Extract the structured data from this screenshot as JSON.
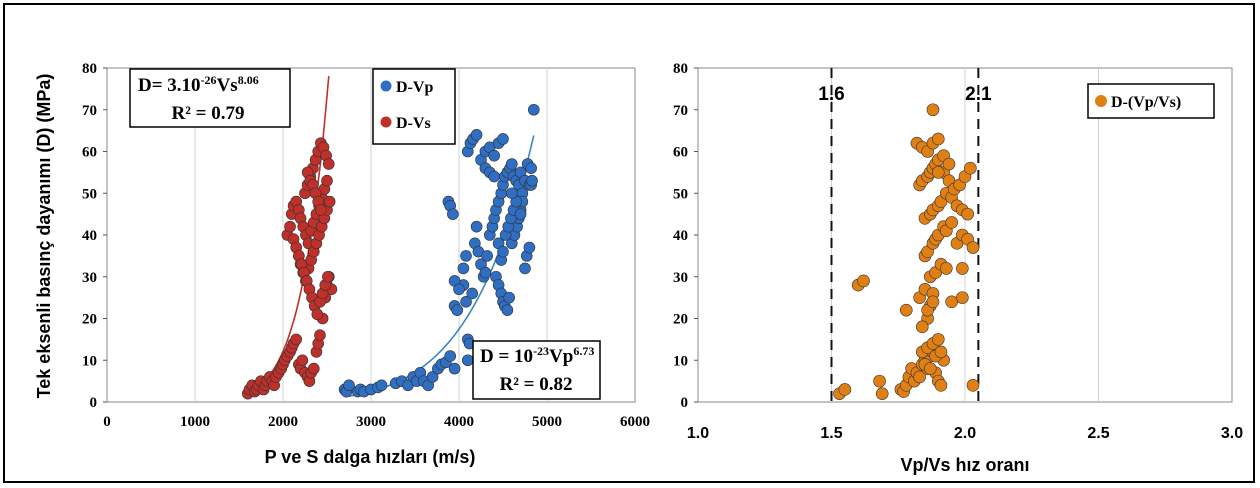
{
  "chart_data": [
    {
      "type": "scatter",
      "ylabel": "Tek eksenli basınç dayanımı (D) (MPa)",
      "xlabel": "P ve S dalga hızları (m/s)",
      "xlim": [
        0,
        6000
      ],
      "ylim": [
        0,
        80
      ],
      "xticks": [
        "0",
        "1000",
        "2000",
        "3000",
        "4000",
        "5000",
        "6000"
      ],
      "yticks": [
        "0",
        "10",
        "20",
        "30",
        "40",
        "50",
        "60",
        "70",
        "80"
      ],
      "grid": "vertical",
      "legend": "top-center",
      "series": [
        {
          "name": "D-Vp",
          "color": "#2e6fc4",
          "x": [
            2700,
            2720,
            2750,
            2850,
            2880,
            2920,
            3000,
            3080,
            3120,
            3280,
            3350,
            3420,
            3480,
            3520,
            3560,
            3600,
            3650,
            3700,
            3760,
            3800,
            3850,
            3900,
            3950,
            3880,
            3900,
            3930,
            3950,
            3980,
            4050,
            4080,
            4100,
            4120,
            4150,
            4180,
            4200,
            4220,
            4250,
            4280,
            4300,
            4320,
            4350,
            4380,
            4400,
            4420,
            4450,
            4480,
            4500,
            4520,
            4550,
            4580,
            4600,
            4620,
            4650,
            4680,
            4700,
            4720,
            4750,
            4780,
            4800,
            4820,
            4850,
            4100,
            4130,
            4160,
            4200,
            4250,
            4300,
            4350,
            4400,
            4420,
            4450,
            4480,
            4500,
            4520,
            4550,
            4570,
            4600,
            4630,
            4660,
            4680,
            4700,
            4720,
            4750,
            4770,
            4800,
            4820,
            4830,
            4450,
            4480,
            4500,
            4530,
            4560,
            4590,
            4620,
            4650,
            3950,
            4000,
            4050,
            4080,
            4300,
            4350,
            4400,
            4450,
            4500,
            4600,
            4700,
            4100
          ],
          "y": [
            3,
            2.5,
            4,
            2.5,
            3,
            2.5,
            3,
            3.5,
            4,
            4.5,
            5,
            4,
            6,
            5,
            7,
            5,
            4,
            6,
            8,
            9,
            9.5,
            11,
            8,
            48,
            47,
            45,
            23,
            22,
            28,
            24,
            15,
            14,
            26,
            38,
            42,
            36,
            33,
            30,
            31,
            35,
            40,
            42,
            44,
            46,
            48,
            50,
            52,
            54,
            55,
            56,
            57,
            54,
            53,
            52,
            55,
            50,
            53,
            57,
            52,
            56,
            70,
            60,
            62,
            63,
            64,
            58,
            56,
            55,
            54,
            30,
            28,
            26,
            24,
            23,
            22,
            25,
            38,
            40,
            42,
            44,
            46,
            48,
            32,
            35,
            37,
            52,
            53,
            38,
            34,
            36,
            40,
            42,
            44,
            46,
            48,
            29,
            27,
            32,
            35,
            60,
            61,
            59,
            62,
            63,
            50,
            45,
            10
          ],
          "fit": {
            "label_line1": "D = 10",
            "label_exp1": "-23",
            "label_mid": "Vp",
            "label_exp2": "6.73",
            "r2": "R² = 0.82"
          }
        },
        {
          "name": "D-Vs",
          "color": "#c0302a",
          "x": [
            1600,
            1620,
            1650,
            1680,
            1700,
            1720,
            1750,
            1780,
            1800,
            1820,
            1850,
            1880,
            1900,
            1920,
            1950,
            1980,
            2000,
            2020,
            2050,
            2080,
            2100,
            2120,
            2150,
            2180,
            2200,
            2220,
            2250,
            2280,
            2300,
            2320,
            2350,
            2380,
            2400,
            2420,
            2450,
            2480,
            2500,
            2520,
            2550,
            2050,
            2080,
            2100,
            2120,
            2150,
            2180,
            2200,
            2230,
            2260,
            2290,
            2320,
            2350,
            2380,
            2410,
            2440,
            2470,
            2500,
            2180,
            2200,
            2230,
            2260,
            2290,
            2320,
            2350,
            2380,
            2410,
            2440,
            2470,
            2500,
            2530,
            2250,
            2280,
            2310,
            2340,
            2370,
            2400,
            2430,
            2460,
            2490,
            2520,
            2280,
            2310,
            2340,
            2370,
            2400,
            2430,
            2120,
            2150,
            2180,
            2210,
            2240,
            2270,
            2300,
            2330,
            2360,
            2390,
            2420,
            2450,
            2480,
            2510
          ],
          "y": [
            2,
            3,
            4,
            2.5,
            3,
            4,
            5,
            3,
            4,
            5,
            6,
            5,
            4,
            6,
            7,
            8,
            9,
            10,
            11,
            12,
            13,
            14,
            15,
            9,
            8,
            10,
            7,
            6,
            5,
            7,
            8,
            12,
            14,
            16,
            20,
            25,
            28,
            30,
            27,
            40,
            42,
            45,
            47,
            48,
            46,
            44,
            42,
            40,
            38,
            41,
            43,
            45,
            47,
            49,
            51,
            53,
            35,
            33,
            31,
            29,
            32,
            34,
            36,
            38,
            40,
            42,
            44,
            46,
            48,
            50,
            52,
            54,
            56,
            58,
            60,
            62,
            61,
            59,
            57,
            55,
            53,
            52,
            50,
            48,
            46,
            39,
            37,
            35,
            33,
            31,
            29,
            27,
            25,
            23,
            21,
            24,
            26,
            28,
            30
          ],
          "fit": {
            "label_line1": "D= 3.10",
            "label_exp1": "-26",
            "label_mid": "Vs",
            "label_exp2": "8.06",
            "r2": "R² = 0.79"
          }
        }
      ]
    },
    {
      "type": "scatter",
      "xlabel": "Vp/Vs hız oranı",
      "xlim": [
        1.0,
        3.0
      ],
      "ylim": [
        0,
        80
      ],
      "xticks": [
        "1.0",
        "1.5",
        "2.0",
        "2.5",
        "3.0"
      ],
      "yticks": [
        "0",
        "10",
        "20",
        "30",
        "40",
        "50",
        "60",
        "70",
        "80"
      ],
      "grid": "vertical",
      "legend": "top-right",
      "reference_lines": [
        {
          "x": 1.5,
          "label": "1.6"
        },
        {
          "x": 2.05,
          "label": "2.1"
        }
      ],
      "series": [
        {
          "name": "D-(Vp/Vs)",
          "color": "#e07f14",
          "x": [
            1.53,
            1.55,
            1.68,
            1.69,
            1.76,
            1.77,
            1.78,
            1.79,
            1.8,
            1.81,
            1.82,
            1.83,
            1.84,
            1.85,
            1.86,
            1.87,
            1.88,
            1.89,
            1.9,
            1.91,
            2.03,
            1.84,
            1.86,
            1.88,
            1.9,
            1.92,
            1.85,
            1.87,
            1.89,
            1.91,
            1.6,
            1.62,
            1.78,
            1.83,
            1.85,
            1.87,
            1.89,
            1.91,
            1.93,
            1.95,
            1.99,
            1.85,
            1.86,
            1.88,
            1.89,
            1.9,
            1.92,
            1.93,
            1.95,
            1.97,
            1.99,
            2.01,
            2.03,
            1.85,
            1.87,
            1.88,
            1.9,
            1.91,
            1.93,
            1.95,
            1.97,
            1.99,
            2.01,
            1.83,
            1.84,
            1.86,
            1.87,
            1.88,
            1.89,
            1.9,
            1.92,
            1.94,
            1.96,
            1.98,
            2.0,
            2.02,
            1.82,
            1.84,
            1.86,
            1.88,
            1.9,
            1.92,
            1.94,
            1.99,
            1.88,
            1.9,
            1.86,
            1.87,
            1.88,
            1.84,
            1.86,
            1.88
          ],
          "y": [
            2,
            3,
            5,
            2,
            3,
            2.5,
            4,
            6,
            8,
            5,
            7,
            6,
            9,
            10,
            8,
            11,
            12,
            7,
            5,
            4,
            4,
            12,
            13,
            14,
            15,
            10,
            9,
            8,
            11,
            12,
            28,
            29,
            22,
            25,
            27,
            30,
            31,
            33,
            32,
            24,
            25,
            35,
            36,
            38,
            39,
            40,
            42,
            41,
            43,
            38,
            40,
            39,
            37,
            44,
            45,
            46,
            47,
            48,
            50,
            49,
            47,
            46,
            45,
            52,
            53,
            54,
            55,
            56,
            57,
            58,
            55,
            53,
            51,
            52,
            54,
            56,
            62,
            61,
            60,
            62,
            63,
            59,
            57,
            32,
            70,
            55,
            20,
            23,
            26,
            18,
            22,
            24
          ]
        }
      ]
    }
  ]
}
